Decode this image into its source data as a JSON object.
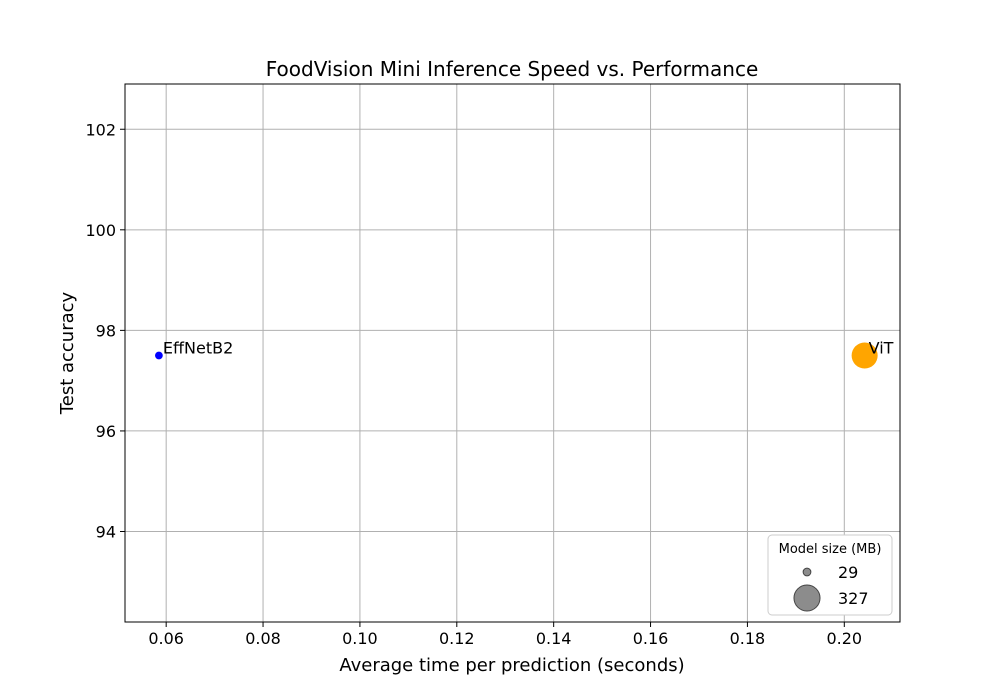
{
  "chart_data": {
    "type": "scatter",
    "title": "FoodVision Mini Inference Speed vs. Performance",
    "xlabel": "Average time per prediction (seconds)",
    "ylabel": "Test accuracy",
    "xlim": [
      0.0515,
      0.2115
    ],
    "ylim": [
      92.2,
      102.9
    ],
    "xticks": [
      0.06,
      0.08,
      0.1,
      0.12,
      0.14,
      0.16,
      0.18,
      0.2
    ],
    "xtick_labels": [
      "0.06",
      "0.08",
      "0.10",
      "0.12",
      "0.14",
      "0.16",
      "0.18",
      "0.20"
    ],
    "yticks": [
      94,
      96,
      98,
      100,
      102
    ],
    "ytick_labels": [
      "94",
      "96",
      "98",
      "100",
      "102"
    ],
    "grid": true,
    "points": [
      {
        "label": "EffNetB2",
        "x": 0.0585,
        "y": 97.5,
        "size_mb": 29,
        "color": "#0000ff"
      },
      {
        "label": "ViT",
        "x": 0.2042,
        "y": 97.5,
        "size_mb": 327,
        "color": "#ffa500"
      }
    ],
    "legend": {
      "title": "Model size (MB)",
      "position": "lower-right",
      "entries": [
        {
          "label": "29",
          "size_mb": 29
        },
        {
          "label": "327",
          "size_mb": 327
        }
      ],
      "marker_color": "#808080"
    }
  }
}
